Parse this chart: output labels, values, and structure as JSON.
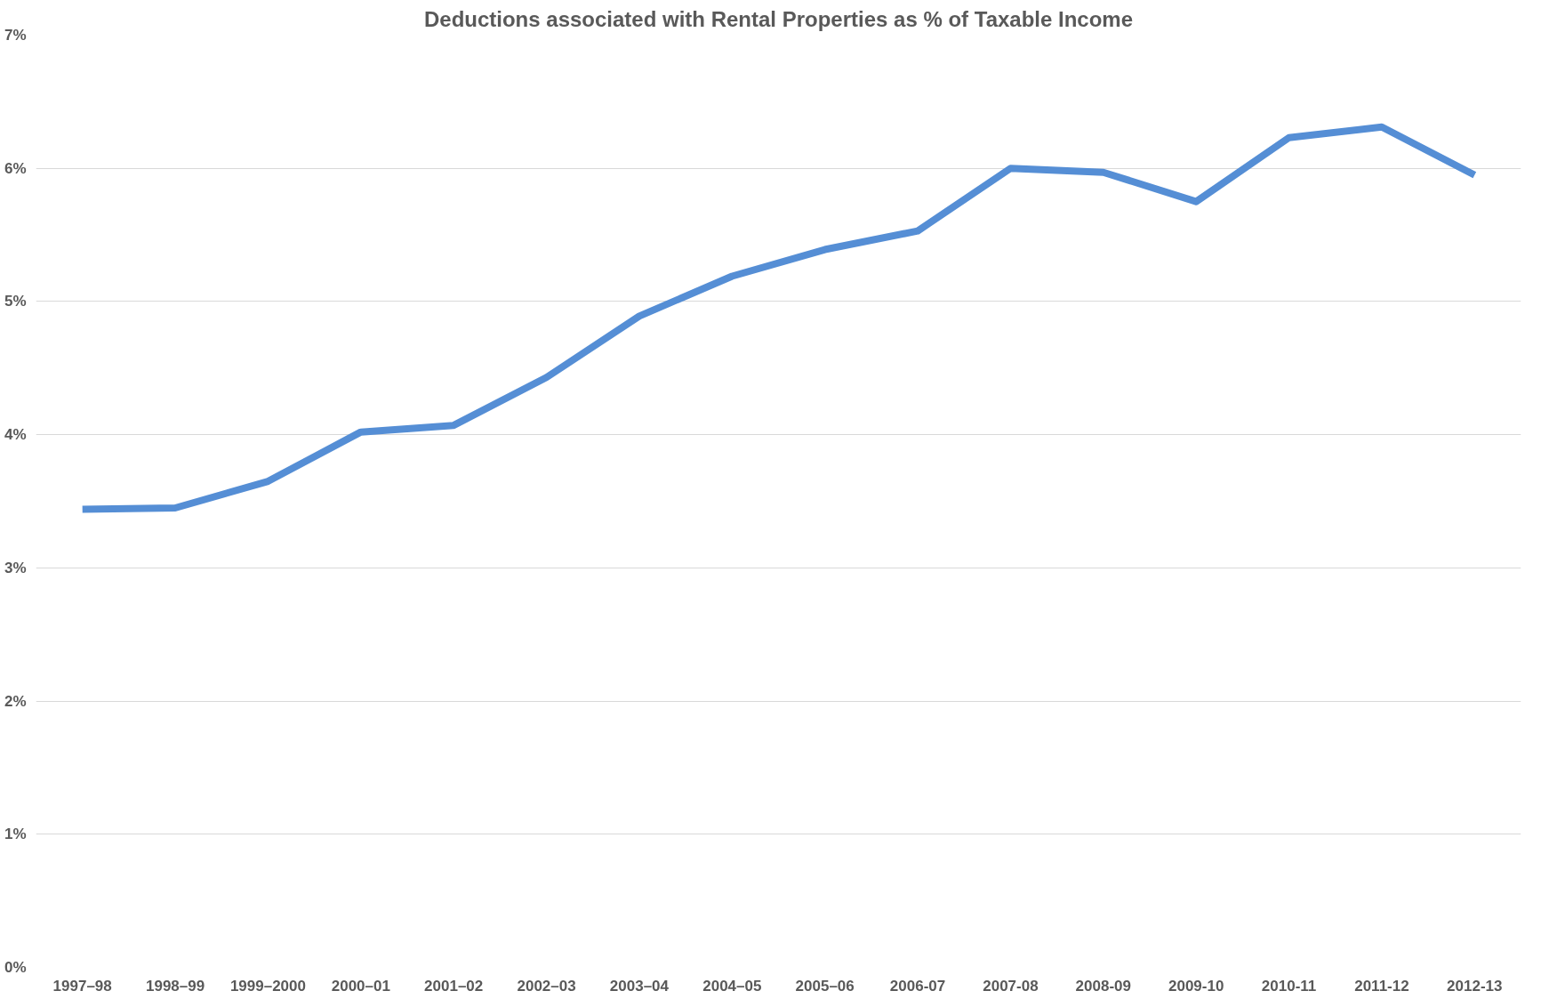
{
  "chart_data": {
    "type": "line",
    "title": "Deductions associated with Rental Properties as % of Taxable Income",
    "categories": [
      "1997–98",
      "1998–99",
      "1999–2000",
      "2000–01",
      "2001–02",
      "2002–03",
      "2003–04",
      "2004–05",
      "2005–06",
      "2006-07",
      "2007-08",
      "2008-09",
      "2009-10",
      "2010-11",
      "2011-12",
      "2012-13"
    ],
    "series": [
      {
        "color": "#558ed5",
        "values": [
          3.44,
          3.45,
          3.65,
          4.02,
          4.07,
          4.43,
          4.89,
          5.19,
          5.39,
          5.53,
          6.0,
          5.97,
          5.75,
          6.23,
          6.31,
          5.95
        ]
      }
    ],
    "ylim": [
      0,
      7
    ],
    "yticks": [
      {
        "value": 0,
        "label": "0%"
      },
      {
        "value": 1,
        "label": "1%"
      },
      {
        "value": 2,
        "label": "2%"
      },
      {
        "value": 3,
        "label": "3%"
      },
      {
        "value": 4,
        "label": "4%"
      },
      {
        "value": 5,
        "label": "5%"
      },
      {
        "value": 6,
        "label": "6%"
      },
      {
        "value": 7,
        "label": "7%"
      }
    ],
    "grid": "y",
    "marker": "none",
    "line_style": "solid"
  }
}
